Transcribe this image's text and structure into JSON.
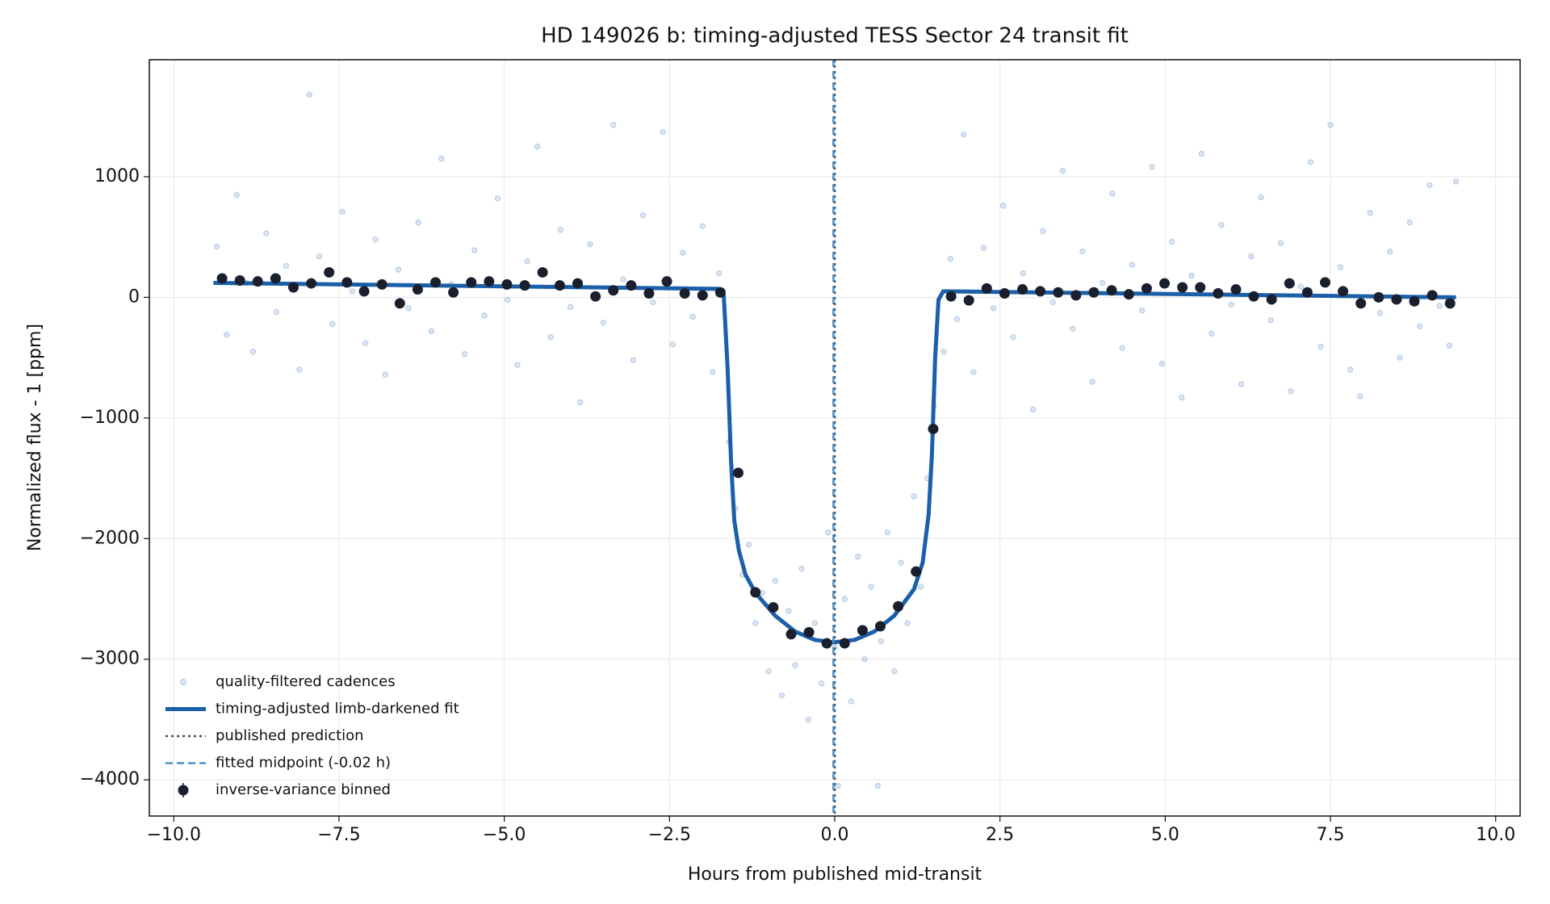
{
  "chart_data": {
    "type": "scatter",
    "title": "HD 149026 b: timing-adjusted TESS Sector 24 transit fit",
    "x_label": "Hours from published mid-transit",
    "y_label": "Normalized flux - 1 [ppm]",
    "xlim": [
      -10.37,
      10.37
    ],
    "ylim": [
      -4300,
      1970
    ],
    "xticks": [
      {
        "value": -10,
        "label": "−10.0"
      },
      {
        "value": -7.5,
        "label": "−7.5"
      },
      {
        "value": -5,
        "label": "−5.0"
      },
      {
        "value": -2.5,
        "label": "−2.5"
      },
      {
        "value": 0,
        "label": "0.0"
      },
      {
        "value": 2.5,
        "label": "2.5"
      },
      {
        "value": 5,
        "label": "5.0"
      },
      {
        "value": 7.5,
        "label": "7.5"
      },
      {
        "value": 10,
        "label": "10.0"
      }
    ],
    "yticks": [
      {
        "value": -4000,
        "label": "−4000"
      },
      {
        "value": -3000,
        "label": "−3000"
      },
      {
        "value": -2000,
        "label": "−2000"
      },
      {
        "value": -1000,
        "label": "−1000"
      },
      0,
      1000
    ],
    "grid": true,
    "legend": "lower left",
    "series": [
      {
        "name": "quality-filtered cadences",
        "type": "scatter",
        "color": "#4a80c0",
        "x": [
          -9.35,
          -9.2,
          -9.05,
          -8.9,
          -8.8,
          -8.6,
          -8.45,
          -8.3,
          -8.1,
          -7.95,
          -7.8,
          -7.6,
          -7.45,
          -7.3,
          -7.1,
          -6.95,
          -6.8,
          -6.6,
          -6.45,
          -6.3,
          -6.1,
          -5.95,
          -5.8,
          -5.6,
          -5.45,
          -5.3,
          -5.1,
          -4.95,
          -4.8,
          -4.65,
          -4.5,
          -4.3,
          -4.15,
          -4.0,
          -3.85,
          -3.7,
          -3.5,
          -3.35,
          -3.2,
          -3.05,
          -2.9,
          -2.75,
          -2.6,
          -2.45,
          -2.3,
          -2.15,
          -2.0,
          -1.85,
          -1.75,
          -1.6,
          -1.5,
          -1.4,
          -1.3,
          -1.2,
          -1.1,
          -1.0,
          -0.9,
          -0.8,
          -0.7,
          -0.6,
          -0.5,
          -0.4,
          -0.3,
          -0.2,
          -0.1,
          0.0,
          0.05,
          0.15,
          0.25,
          0.35,
          0.45,
          0.55,
          0.65,
          0.7,
          0.8,
          0.9,
          1.0,
          1.1,
          1.2,
          1.3,
          1.4,
          1.5,
          1.65,
          1.75,
          1.85,
          1.95,
          2.1,
          2.25,
          2.4,
          2.55,
          2.7,
          2.85,
          3.0,
          3.15,
          3.3,
          3.45,
          3.6,
          3.75,
          3.9,
          4.05,
          4.2,
          4.35,
          4.5,
          4.65,
          4.8,
          4.95,
          5.1,
          5.25,
          5.4,
          5.55,
          5.7,
          5.85,
          6.0,
          6.15,
          6.3,
          6.45,
          6.6,
          6.75,
          6.9,
          7.05,
          7.2,
          7.35,
          7.5,
          7.65,
          7.8,
          7.95,
          8.1,
          8.25,
          8.4,
          8.55,
          8.7,
          8.85,
          9.0,
          9.15,
          9.3,
          9.4
        ],
        "values": [
          420,
          -310,
          850,
          120,
          -450,
          530,
          -120,
          260,
          -600,
          1680,
          340,
          -220,
          710,
          50,
          -380,
          480,
          -640,
          230,
          -90,
          620,
          -280,
          1150,
          110,
          -470,
          390,
          -150,
          820,
          -20,
          -560,
          300,
          1250,
          -330,
          560,
          -80,
          -870,
          440,
          -210,
          1430,
          150,
          -520,
          680,
          -40,
          1370,
          -390,
          370,
          -160,
          590,
          -620,
          200,
          -1200,
          -1750,
          -2300,
          -2050,
          -2700,
          -2450,
          -3100,
          -2350,
          -3300,
          -2600,
          -3050,
          -2250,
          -3500,
          -2700,
          -3200,
          -1950,
          -2900,
          -4050,
          -2500,
          -3350,
          -2150,
          -3000,
          -2400,
          -4050,
          -2850,
          -1950,
          -3100,
          -2200,
          -2700,
          -1650,
          -2400,
          -1500,
          -900,
          -450,
          320,
          -180,
          1350,
          -620,
          410,
          -90,
          760,
          -330,
          200,
          -930,
          550,
          -40,
          1050,
          -260,
          380,
          -700,
          120,
          860,
          -420,
          270,
          -110,
          1080,
          -550,
          460,
          -830,
          180,
          1190,
          -300,
          600,
          -60,
          -720,
          340,
          830,
          -190,
          450,
          -780,
          90,
          1120,
          -410,
          1430,
          250,
          -600,
          -820,
          700,
          -130,
          380,
          -500,
          620,
          -240,
          930,
          -70,
          -400,
          960
        ]
      },
      {
        "name": "timing-adjusted limb-darkened fit",
        "type": "line",
        "color": "#1a5fa8",
        "x": [
          -9.4,
          -1.75,
          -1.68,
          -1.62,
          -1.57,
          -1.52,
          -1.45,
          -1.35,
          -1.2,
          -0.9,
          -0.6,
          -0.3,
          -0.02,
          0.3,
          0.6,
          0.9,
          1.2,
          1.33,
          1.42,
          1.47,
          1.52,
          1.57,
          1.64,
          9.4
        ],
        "values": [
          120,
          70,
          20,
          -600,
          -1350,
          -1850,
          -2100,
          -2300,
          -2450,
          -2640,
          -2770,
          -2840,
          -2860,
          -2840,
          -2770,
          -2640,
          -2420,
          -2200,
          -1800,
          -1300,
          -500,
          -20,
          50,
          0
        ]
      },
      {
        "name": "published prediction",
        "type": "vline",
        "color": "#3d5066",
        "dash": "dotted",
        "x": 0
      },
      {
        "name": "fitted midpoint (-0.02 h)",
        "type": "vline",
        "color": "#4a90c8",
        "dash": "dashed",
        "x": -0.02
      },
      {
        "name": "inverse-variance binned",
        "type": "errorbar",
        "color": "#1a1f2e",
        "x": [
          -9.27,
          -9.0,
          -8.73,
          -8.46,
          -8.19,
          -7.92,
          -7.65,
          -7.38,
          -7.12,
          -6.85,
          -6.58,
          -6.31,
          -6.04,
          -5.77,
          -5.5,
          -5.23,
          -4.96,
          -4.69,
          -4.42,
          -4.16,
          -3.89,
          -3.62,
          -3.35,
          -3.08,
          -2.81,
          -2.54,
          -2.27,
          -2.0,
          -1.73,
          -1.46,
          -1.2,
          -0.93,
          -0.66,
          -0.39,
          -0.12,
          0.15,
          0.42,
          0.69,
          0.96,
          1.23,
          1.49,
          1.76,
          2.03,
          2.3,
          2.57,
          2.84,
          3.11,
          3.38,
          3.65,
          3.92,
          4.19,
          4.45,
          4.72,
          4.99,
          5.26,
          5.53,
          5.8,
          6.07,
          6.34,
          6.61,
          6.88,
          7.15,
          7.42,
          7.69,
          7.96,
          8.23,
          8.5,
          8.77,
          9.04,
          9.31
        ],
        "values": [
          157,
          140,
          132,
          157,
          83,
          116,
          207,
          124,
          50,
          107,
          -50,
          66,
          124,
          41,
          124,
          132,
          107,
          99,
          207,
          99,
          116,
          8,
          58,
          99,
          33,
          132,
          33,
          17,
          41,
          -1455,
          -2446,
          -2570,
          -2793,
          -2777,
          -2868,
          -2868,
          -2760,
          -2727,
          -2562,
          -2273,
          -1091,
          8,
          -25,
          74,
          33,
          66,
          50,
          41,
          17,
          41,
          58,
          25,
          74,
          116,
          83,
          83,
          33,
          66,
          8,
          -17,
          116,
          41,
          124,
          50,
          -50,
          0,
          -17,
          -33,
          17,
          -50
        ]
      }
    ]
  }
}
